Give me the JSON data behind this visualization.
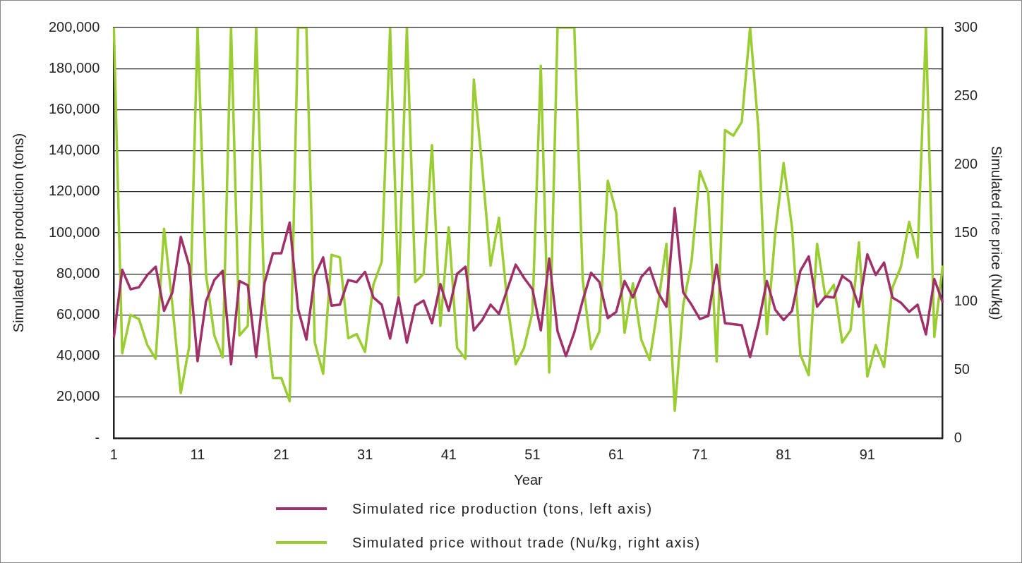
{
  "chart_data": {
    "type": "line",
    "xlabel": "Year",
    "ylabel": "Simulated rice production (tons)",
    "y2label": "Simulated rice price (Nu/kg)",
    "categories": [
      "1",
      null,
      null,
      null,
      null,
      null,
      null,
      null,
      null,
      null,
      "11",
      null,
      null,
      null,
      null,
      null,
      null,
      null,
      null,
      null,
      "21",
      null,
      null,
      null,
      null,
      null,
      null,
      null,
      null,
      null,
      "31",
      null,
      null,
      null,
      null,
      null,
      null,
      null,
      null,
      null,
      "41",
      null,
      null,
      null,
      null,
      null,
      null,
      null,
      null,
      null,
      "51",
      null,
      null,
      null,
      null,
      null,
      null,
      null,
      null,
      null,
      "61",
      null,
      null,
      null,
      null,
      null,
      null,
      null,
      null,
      null,
      "71",
      null,
      null,
      null,
      null,
      null,
      null,
      null,
      null,
      null,
      "81",
      null,
      null,
      null,
      null,
      null,
      null,
      null,
      null,
      null,
      "91",
      null,
      null,
      null,
      null,
      null,
      null,
      null,
      null,
      null
    ],
    "series": [
      {
        "name": "Simulated rice production (tons, left axis)",
        "color": "#a03068",
        "values": [
          49000,
          82000,
          72500,
          73500,
          79500,
          83500,
          62000,
          71000,
          98000,
          84000,
          37500,
          66500,
          77000,
          81500,
          36000,
          76500,
          74500,
          39500,
          75500,
          90000,
          90000,
          105000,
          63000,
          48000,
          79000,
          88000,
          64500,
          65000,
          77000,
          76000,
          81000,
          68500,
          65000,
          48500,
          68500,
          46500,
          64500,
          67000,
          56000,
          75000,
          62000,
          80000,
          83500,
          52500,
          57500,
          65000,
          60500,
          72500,
          84500,
          78000,
          72500,
          52500,
          87500,
          52000,
          40000,
          51500,
          67000,
          80500,
          76000,
          58500,
          61500,
          76500,
          68500,
          78500,
          83000,
          71000,
          64000,
          112000,
          71000,
          65000,
          58000,
          59500,
          84500,
          56000,
          55500,
          55000,
          39500,
          56000,
          76500,
          62500,
          57500,
          62000,
          81500,
          88500,
          64000,
          69000,
          68500,
          79000,
          76000,
          64000,
          89500,
          79500,
          85500,
          68500,
          66000,
          61500,
          65000,
          50500,
          77500,
          66000
        ]
      },
      {
        "name": "Simulated price without trade (Nu/kg, right axis)",
        "color": "#9acd32",
        "axis": "y2",
        "values": [
          300,
          62,
          90,
          87,
          68,
          58,
          153,
          97,
          33,
          67,
          300,
          120,
          75,
          59,
          300,
          75,
          82,
          300,
          98,
          44,
          44,
          27,
          300,
          300,
          70,
          47,
          134,
          132,
          73,
          76,
          63,
          112,
          129,
          300,
          104,
          300,
          114,
          120,
          214,
          82,
          154,
          66,
          58,
          262,
          198,
          126,
          161,
          99,
          54,
          66,
          92,
          272,
          48,
          300,
          300,
          300,
          116,
          65,
          78,
          188,
          165,
          77,
          113,
          72,
          57,
          97,
          142,
          20,
          97,
          129,
          195,
          179,
          56,
          225,
          221,
          231,
          300,
          225,
          76,
          150,
          201,
          154,
          61,
          46,
          142,
          103,
          112,
          70,
          79,
          143,
          45,
          68,
          52,
          110,
          125,
          158,
          132,
          300,
          74,
          126
        ]
      }
    ],
    "ylim": [
      0,
      200000
    ],
    "yticks": [
      {
        "value": 0,
        "label": "-"
      },
      {
        "value": 20000,
        "label": "20,000"
      },
      {
        "value": 40000,
        "label": "40,000"
      },
      {
        "value": 60000,
        "label": "60,000"
      },
      {
        "value": 80000,
        "label": "80,000"
      },
      {
        "value": 100000,
        "label": "100,000"
      },
      {
        "value": 120000,
        "label": "120,000"
      },
      {
        "value": 140000,
        "label": "140,000"
      },
      {
        "value": 160000,
        "label": "160,000"
      },
      {
        "value": 180000,
        "label": "180,000"
      },
      {
        "value": 200000,
        "label": "200,000"
      }
    ],
    "y2lim": [
      0,
      300
    ],
    "y2ticks": [
      0,
      50,
      100,
      150,
      200,
      250,
      300
    ],
    "grid": "y",
    "legend": "bottom",
    "marker": "none",
    "line_style": "solid"
  }
}
